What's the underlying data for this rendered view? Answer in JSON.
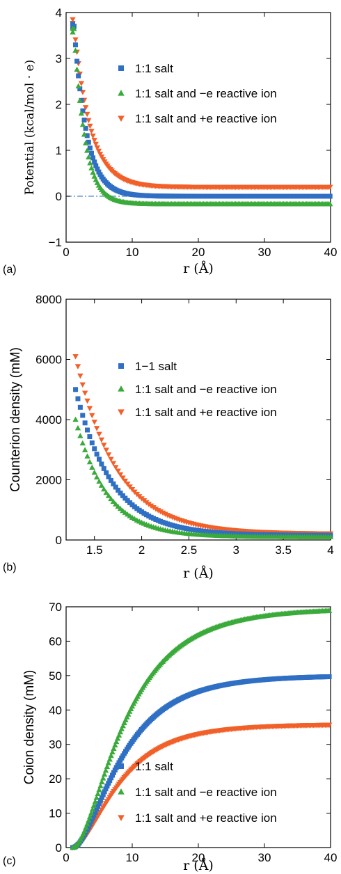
{
  "colors": {
    "blue": "#2f6fc4",
    "green": "#3aaa3a",
    "orange": "#f2602a",
    "zero_line": "#4a86d0"
  },
  "chart_data": [
    {
      "type": "scatter",
      "panel_label": "(a)",
      "xlabel": "r (Å)",
      "ylabel": "Potential (kcal/mol · e)",
      "xlim": [
        0,
        40
      ],
      "ylim": [
        -1,
        4
      ],
      "xticks": [
        "0",
        "10",
        "20",
        "30",
        "40"
      ],
      "yticks": [
        "−1",
        "0",
        "1",
        "2",
        "3",
        "4"
      ],
      "legend_position": "upper-center",
      "reference_line": {
        "y": 0,
        "style": "dash-dot"
      },
      "series": [
        {
          "name": "1:1 salt",
          "marker": "square",
          "color": "blue",
          "model": "exp",
          "a": 4.1,
          "k": 0.52,
          "c": 0.0,
          "x0": 1.0,
          "y0": 3.75
        },
        {
          "name": "1:1 salt and −e reactive ion",
          "marker": "triangle-up",
          "color": "green",
          "model": "exp",
          "a": 4.3,
          "k": 0.6,
          "c": -0.17,
          "x0": 1.0,
          "y0": 3.65
        },
        {
          "name": "1:1 salt and +e reactive ion",
          "marker": "triangle-down",
          "color": "orange",
          "model": "exp",
          "a": 3.8,
          "k": 0.4,
          "c": 0.2,
          "x0": 1.0,
          "y0": 3.85
        }
      ]
    },
    {
      "type": "scatter",
      "panel_label": "(b)",
      "xlabel": "r (Å)",
      "ylabel": "Counterion density (mM)",
      "xlim": [
        1.2,
        4
      ],
      "ylim": [
        0,
        8000
      ],
      "xticks": [
        "1.5",
        "2",
        "2.5",
        "3",
        "3.5",
        "4"
      ],
      "yticks": [
        "0",
        "2000",
        "4000",
        "6000",
        "8000"
      ],
      "legend_position": "upper-right",
      "series": [
        {
          "name": "1−1 salt",
          "marker": "square",
          "color": "blue",
          "model": "decay",
          "x_start": 1.3,
          "y_start": 5000,
          "y_end": 150,
          "k": 2.6
        },
        {
          "name": "1:1 salt and −e reactive ion",
          "marker": "triangle-up",
          "color": "green",
          "model": "decay",
          "x_start": 1.3,
          "y_start": 4000,
          "y_end": 100,
          "k": 3.0
        },
        {
          "name": "1:1 salt and +e reactive ion",
          "marker": "triangle-down",
          "color": "orange",
          "model": "decay",
          "x_start": 1.3,
          "y_start": 6100,
          "y_end": 200,
          "k": 2.3
        }
      ]
    },
    {
      "type": "scatter",
      "panel_label": "(c)",
      "xlabel": "r (Å)",
      "ylabel": "Coion density (mM)",
      "xlim": [
        0,
        40
      ],
      "ylim": [
        0,
        70
      ],
      "xticks": [
        "0",
        "10",
        "20",
        "30",
        "40"
      ],
      "yticks": [
        "0",
        "10",
        "20",
        "30",
        "40",
        "50",
        "60",
        "70"
      ],
      "legend_position": "lower-right",
      "series": [
        {
          "name": "1:1 salt",
          "marker": "square",
          "color": "blue",
          "model": "sigmoid",
          "plateau": 50,
          "k": 0.13,
          "x0": 1.0
        },
        {
          "name": "1:1 salt and −e reactive ion",
          "marker": "triangle-up",
          "color": "green",
          "model": "sigmoid",
          "plateau": 69.5,
          "k": 0.12,
          "x0": 1.0
        },
        {
          "name": "1:1 salt and +e reactive ion",
          "marker": "triangle-down",
          "color": "orange",
          "model": "sigmoid",
          "plateau": 35.8,
          "k": 0.14,
          "x0": 1.0
        }
      ]
    }
  ]
}
